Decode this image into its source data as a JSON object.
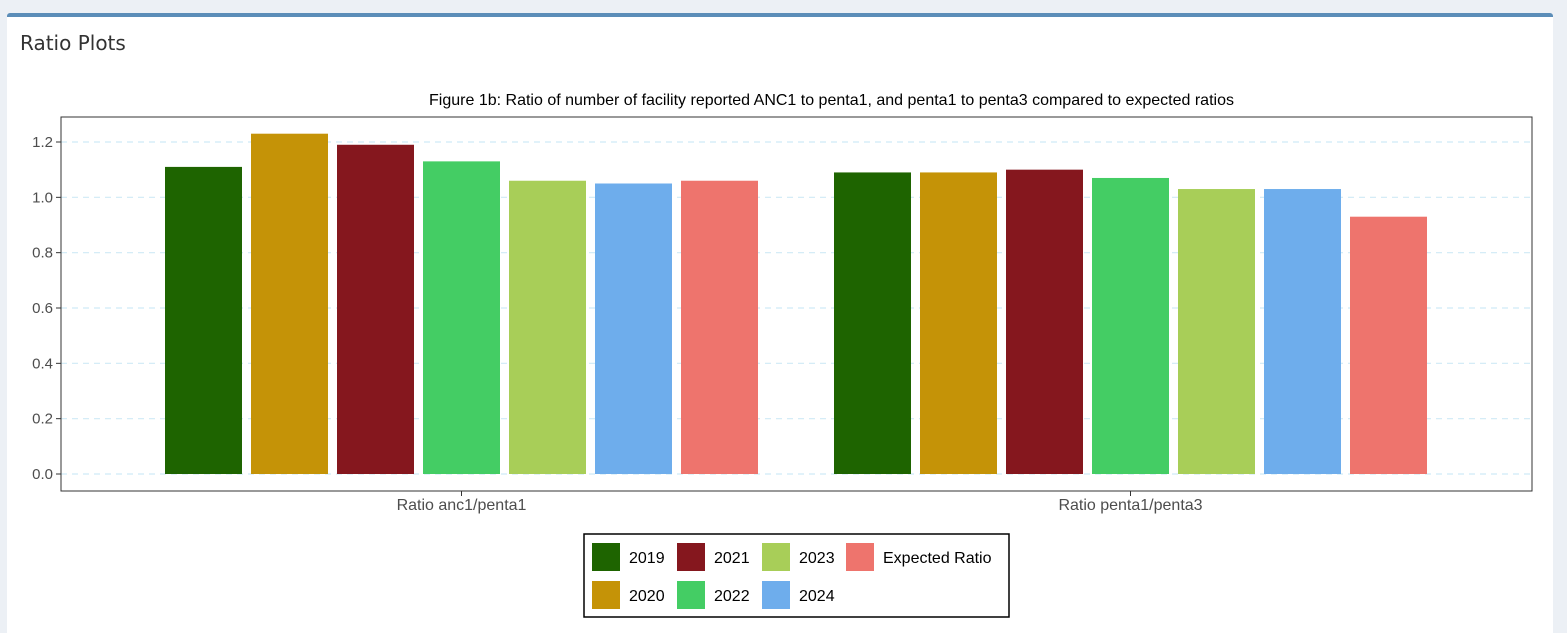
{
  "panel": {
    "title": "Ratio Plots"
  },
  "chart_data": {
    "type": "bar",
    "title": "Figure 1b: Ratio of number of facility reported ANC1 to penta1, and penta1 to penta3 compared to expected ratios",
    "categories": [
      "Ratio anc1/penta1",
      "Ratio penta1/penta3"
    ],
    "series": [
      {
        "name": "2019",
        "color": "#1e6400",
        "values": [
          1.11,
          1.09
        ]
      },
      {
        "name": "2020",
        "color": "#c59307",
        "values": [
          1.23,
          1.09
        ]
      },
      {
        "name": "2021",
        "color": "#85171e",
        "values": [
          1.19,
          1.1
        ]
      },
      {
        "name": "2022",
        "color": "#44cd64",
        "values": [
          1.13,
          1.07
        ]
      },
      {
        "name": "2023",
        "color": "#a8ce58",
        "values": [
          1.06,
          1.03
        ]
      },
      {
        "name": "2024",
        "color": "#6eadec",
        "values": [
          1.05,
          1.03
        ]
      },
      {
        "name": "Expected Ratio",
        "color": "#ee746d",
        "values": [
          1.06,
          0.93
        ]
      }
    ],
    "ylim": [
      0,
      1.25
    ],
    "yticks": [
      "0.0",
      "0.2",
      "0.4",
      "0.6",
      "0.8",
      "1.0",
      "1.2"
    ],
    "grid": "horizontal dashed",
    "legend": {
      "placement": "bottom",
      "order": [
        "2019",
        "2021",
        "2023",
        "Expected Ratio",
        "2020",
        "2022",
        "2024"
      ]
    }
  }
}
